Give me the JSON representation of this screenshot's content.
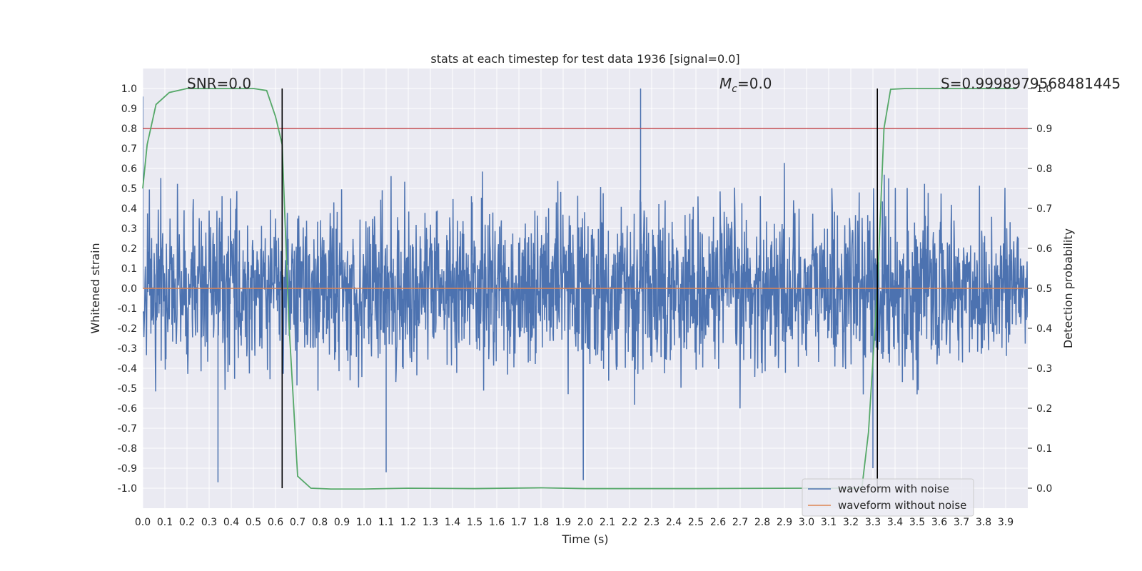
{
  "chart_data": {
    "type": "line",
    "title": "stats at each timestep for test data 1936 [signal=0.0]",
    "xlabel": "Time (s)",
    "ylabel": "Whitened strain",
    "y2label": "Detection probability",
    "xlim": [
      0.0,
      4.0
    ],
    "ylim": [
      -1.1,
      1.1
    ],
    "y2lim": [
      -0.05,
      1.05
    ],
    "x_ticks": [
      0.0,
      0.1,
      0.2,
      0.3,
      0.4,
      0.5,
      0.6,
      0.7,
      0.8,
      0.9,
      1.0,
      1.1,
      1.2,
      1.3,
      1.4,
      1.5,
      1.6,
      1.7,
      1.8,
      1.9,
      2.0,
      2.1,
      2.2,
      2.3,
      2.4,
      2.5,
      2.6,
      2.7,
      2.8,
      2.9,
      3.0,
      3.1,
      3.2,
      3.3,
      3.4,
      3.5,
      3.6,
      3.7,
      3.8,
      3.9
    ],
    "x_tick_labels": [
      "0.0",
      "0.1",
      "0.2",
      "0.3",
      "0.4",
      "0.5",
      "0.6",
      "0.7",
      "0.8",
      "0.9",
      "1.0",
      "1.1",
      "1.2",
      "1.3",
      "1.4",
      "1.5",
      "1.6",
      "1.7",
      "1.8",
      "1.9",
      "2.0",
      "2.1",
      "2.2",
      "2.3",
      "2.4",
      "2.5",
      "2.6",
      "2.7",
      "2.8",
      "2.9",
      "3.0",
      "3.1",
      "3.2",
      "3.3",
      "3.4",
      "3.5",
      "3.6",
      "3.7",
      "3.8",
      "3.9"
    ],
    "y_ticks": [
      1.0,
      0.9,
      0.8,
      0.7,
      0.6,
      0.5,
      0.4,
      0.3,
      0.2,
      0.1,
      0.0,
      -0.1,
      -0.2,
      -0.3,
      -0.4,
      -0.5,
      -0.6,
      -0.7,
      -0.8,
      -0.9,
      -1.0
    ],
    "y_tick_labels": [
      "1.0",
      "0.9",
      "0.8",
      "0.7",
      "0.6",
      "0.5",
      "0.4",
      "0.3",
      "0.2",
      "0.1",
      "0.0",
      "-0.1",
      "-0.2",
      "-0.3",
      "-0.4",
      "-0.5",
      "-0.6",
      "-0.7",
      "-0.8",
      "-0.9",
      "-1.0"
    ],
    "y2_ticks": [
      1.0,
      0.9,
      0.8,
      0.7,
      0.6,
      0.5,
      0.4,
      0.3,
      0.2,
      0.1,
      0.0
    ],
    "y2_tick_labels": [
      "1.0",
      "0.9",
      "0.8",
      "0.7",
      "0.6",
      "0.5",
      "0.4",
      "0.3",
      "0.2",
      "0.1",
      "0.0"
    ],
    "grid": true,
    "legend_position": "bottom-right",
    "annotations": {
      "snr": "SNR=0.0",
      "mc_symbol": "M",
      "mc_sub": "c",
      "mc_value": "=0.0",
      "s": "S=0.9998979568481445"
    },
    "series": [
      {
        "name": "waveform with noise",
        "color": "#4c72b0",
        "axis": "left",
        "style": "dense-noise",
        "x_range": [
          0.0,
          4.0
        ],
        "approx_envelope": [
          -1.0,
          1.0
        ],
        "notable_peaks": [
          [
            0.0,
            0.96
          ],
          [
            0.34,
            -0.97
          ],
          [
            2.25,
            1.0
          ],
          [
            1.1,
            -0.92
          ],
          [
            3.3,
            -0.9
          ]
        ]
      },
      {
        "name": "waveform without noise",
        "color": "#dd8452",
        "axis": "left",
        "x": [
          0.0,
          4.0
        ],
        "y": [
          0.0,
          0.0
        ]
      },
      {
        "name": "",
        "color": "#55a868",
        "axis": "right",
        "x": [
          0.0,
          0.02,
          0.04,
          0.06,
          0.12,
          0.2,
          0.3,
          0.4,
          0.5,
          0.56,
          0.6,
          0.63,
          0.66,
          0.7,
          0.76,
          0.85,
          1.0,
          1.2,
          1.5,
          1.8,
          2.0,
          2.5,
          3.0,
          3.25,
          3.28,
          3.32,
          3.35,
          3.38,
          3.45,
          3.6,
          3.8,
          3.95
        ],
        "y": [
          0.75,
          0.86,
          0.91,
          0.96,
          0.99,
          1.0,
          1.0,
          1.0,
          1.0,
          0.995,
          0.93,
          0.86,
          0.42,
          0.03,
          0.0,
          -0.002,
          -0.002,
          0.0,
          -0.001,
          0.001,
          -0.001,
          -0.001,
          0.0,
          0.0,
          0.14,
          0.5,
          0.9,
          0.998,
          1.0,
          1.0,
          1.0,
          1.0
        ]
      }
    ],
    "threshold_line": {
      "y2": 0.9,
      "color": "#c44e52"
    },
    "vertical_markers": [
      0.63,
      3.32
    ]
  }
}
